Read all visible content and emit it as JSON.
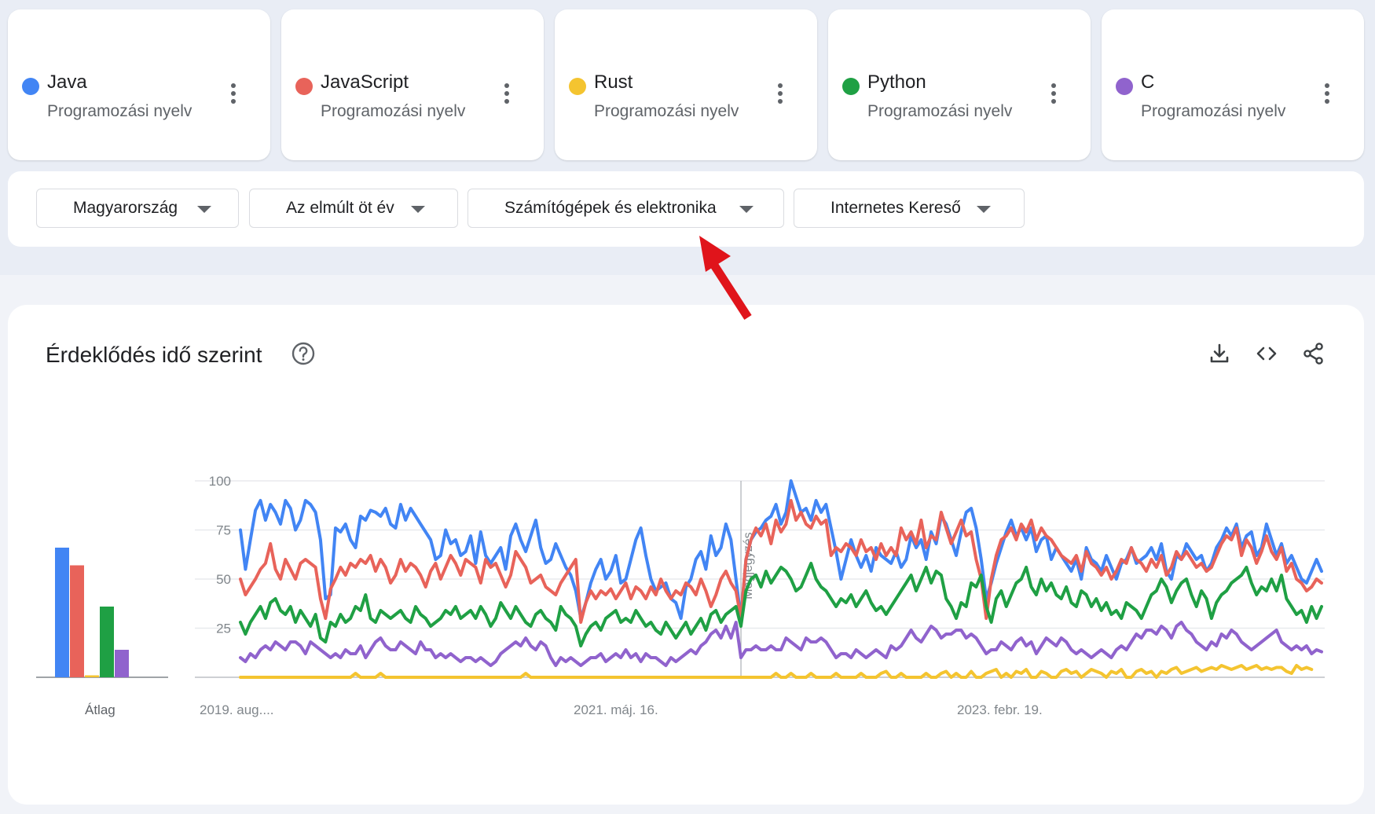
{
  "terms": [
    {
      "name": "Java",
      "type": "Programozási nyelv",
      "color": "#4285f4"
    },
    {
      "name": "JavaScript",
      "type": "Programozási nyelv",
      "color": "#e8635a"
    },
    {
      "name": "Rust",
      "type": "Programozási nyelv",
      "color": "#f4c430"
    },
    {
      "name": "Python",
      "type": "Programozási nyelv",
      "color": "#1fa044"
    },
    {
      "name": "C",
      "type": "Programozási nyelv",
      "color": "#9063cd"
    }
  ],
  "filters": {
    "region": "Magyarország",
    "time": "Az elmúlt öt év",
    "category": "Számítógépek és elektronika",
    "property": "Internetes Kereső"
  },
  "chart_card": {
    "title": "Érdeklődés idő szerint",
    "help_icon": "help-circle-icon",
    "download_icon": "download-icon",
    "embed_icon": "code-icon",
    "share_icon": "share-icon",
    "avg_label": "Átlag",
    "note_label": "Megjegyzés"
  },
  "chart_data": {
    "type": "line",
    "y_ticks": [
      "100",
      "75",
      "50",
      "25"
    ],
    "ylim": [
      0,
      100
    ],
    "x_tick_labels": [
      "2019. aug....",
      "2021. máj. 16.",
      "2023. febr. 19."
    ],
    "averages": [
      {
        "name": "Java",
        "value": 66,
        "color": "#4285f4"
      },
      {
        "name": "JavaScript",
        "value": 57,
        "color": "#e8635a"
      },
      {
        "name": "Rust",
        "value": 1,
        "color": "#f4c430"
      },
      {
        "name": "Python",
        "value": 36,
        "color": "#1fa044"
      },
      {
        "name": "C",
        "value": 14,
        "color": "#9063cd"
      }
    ],
    "series": [
      {
        "name": "Java",
        "color": "#4285f4",
        "values": [
          75,
          55,
          70,
          85,
          90,
          80,
          88,
          84,
          78,
          90,
          86,
          75,
          80,
          90,
          88,
          84,
          70,
          40,
          42,
          76,
          74,
          78,
          70,
          66,
          82,
          80,
          85,
          84,
          82,
          86,
          78,
          76,
          88,
          80,
          86,
          82,
          78,
          74,
          70,
          60,
          62,
          75,
          68,
          70,
          62,
          64,
          72,
          58,
          74,
          62,
          58,
          62,
          66,
          55,
          72,
          78,
          70,
          64,
          72,
          80,
          66,
          58,
          60,
          68,
          62,
          56,
          52,
          44,
          30,
          38,
          48,
          55,
          60,
          50,
          54,
          62,
          48,
          50,
          60,
          70,
          76,
          62,
          50,
          44,
          46,
          48,
          40,
          38,
          30,
          46,
          50,
          60,
          64,
          55,
          72,
          62,
          66,
          78,
          70,
          50,
          30,
          60,
          70,
          74,
          76,
          80,
          82,
          88,
          78,
          84,
          100,
          92,
          84,
          86,
          80,
          90,
          84,
          88,
          76,
          64,
          50,
          60,
          70,
          62,
          56,
          62,
          54,
          66,
          62,
          60,
          58,
          64,
          56,
          60,
          72,
          66,
          70,
          60,
          74,
          68,
          82,
          78,
          70,
          62,
          74,
          84,
          86,
          76,
          60,
          40,
          48,
          58,
          66,
          74,
          80,
          72,
          76,
          70,
          76,
          64,
          70,
          72,
          60,
          66,
          62,
          58,
          54,
          60,
          50,
          66,
          60,
          58,
          54,
          62,
          56,
          50,
          58,
          60,
          66,
          58,
          60,
          62,
          66,
          60,
          68,
          54,
          50,
          62,
          60,
          68,
          64,
          60,
          62,
          54,
          58,
          66,
          70,
          76,
          72,
          78,
          66,
          72,
          74,
          62,
          66,
          78,
          70,
          62,
          68,
          58,
          62,
          56,
          50,
          48,
          54,
          60,
          54
        ]
      },
      {
        "name": "JavaScript",
        "color": "#e8635a",
        "values": [
          50,
          42,
          46,
          50,
          55,
          58,
          68,
          55,
          50,
          60,
          55,
          50,
          58,
          60,
          58,
          56,
          40,
          30,
          45,
          50,
          56,
          52,
          58,
          56,
          60,
          58,
          62,
          54,
          60,
          56,
          48,
          52,
          60,
          54,
          58,
          56,
          52,
          46,
          54,
          58,
          50,
          56,
          62,
          58,
          52,
          60,
          58,
          56,
          48,
          60,
          56,
          58,
          52,
          46,
          52,
          64,
          60,
          56,
          48,
          50,
          52,
          46,
          44,
          42,
          48,
          52,
          56,
          60,
          28,
          38,
          44,
          40,
          44,
          42,
          45,
          40,
          44,
          48,
          40,
          46,
          44,
          40,
          46,
          42,
          50,
          44,
          40,
          44,
          42,
          48,
          46,
          42,
          50,
          44,
          36,
          42,
          50,
          54,
          48,
          44,
          30,
          60,
          70,
          76,
          72,
          78,
          68,
          80,
          74,
          78,
          90,
          80,
          84,
          78,
          76,
          82,
          78,
          80,
          62,
          66,
          64,
          68,
          66,
          62,
          70,
          64,
          66,
          60,
          68,
          62,
          66,
          62,
          76,
          70,
          74,
          68,
          80,
          66,
          72,
          70,
          84,
          76,
          68,
          74,
          80,
          72,
          74,
          60,
          50,
          30,
          50,
          62,
          70,
          72,
          76,
          70,
          78,
          74,
          80,
          70,
          76,
          72,
          70,
          66,
          62,
          60,
          58,
          62,
          54,
          64,
          58,
          56,
          52,
          56,
          50,
          54,
          60,
          58,
          66,
          60,
          58,
          54,
          60,
          56,
          62,
          52,
          56,
          64,
          60,
          64,
          60,
          56,
          58,
          54,
          56,
          62,
          68,
          72,
          70,
          76,
          62,
          70,
          66,
          58,
          64,
          72,
          64,
          60,
          66,
          54,
          58,
          50,
          48,
          44,
          46,
          50,
          48
        ]
      },
      {
        "name": "Rust",
        "color": "#f4c430",
        "values": [
          0,
          0,
          0,
          0,
          0,
          0,
          0,
          0,
          0,
          0,
          0,
          0,
          0,
          0,
          0,
          0,
          0,
          0,
          0,
          0,
          0,
          0,
          0,
          2,
          0,
          0,
          0,
          0,
          2,
          0,
          0,
          0,
          0,
          0,
          0,
          0,
          0,
          0,
          0,
          0,
          0,
          0,
          0,
          0,
          0,
          0,
          0,
          0,
          0,
          0,
          0,
          0,
          0,
          0,
          0,
          0,
          0,
          2,
          0,
          0,
          0,
          0,
          0,
          0,
          0,
          0,
          0,
          0,
          0,
          0,
          0,
          0,
          0,
          0,
          0,
          0,
          0,
          0,
          0,
          0,
          0,
          0,
          0,
          0,
          0,
          0,
          0,
          0,
          0,
          0,
          0,
          0,
          0,
          0,
          0,
          0,
          0,
          0,
          0,
          0,
          0,
          0,
          0,
          0,
          0,
          0,
          0,
          2,
          0,
          0,
          2,
          0,
          0,
          0,
          2,
          0,
          0,
          0,
          0,
          2,
          0,
          0,
          0,
          0,
          2,
          0,
          0,
          0,
          2,
          3,
          0,
          0,
          2,
          0,
          0,
          0,
          0,
          2,
          0,
          0,
          2,
          3,
          0,
          2,
          0,
          0,
          3,
          0,
          0,
          2,
          3,
          4,
          0,
          2,
          0,
          3,
          2,
          4,
          0,
          0,
          3,
          2,
          0,
          0,
          3,
          4,
          2,
          3,
          0,
          2,
          4,
          3,
          2,
          0,
          3,
          2,
          4,
          0,
          0,
          3,
          4,
          2,
          3,
          0,
          3,
          2,
          4,
          5,
          2,
          3,
          4,
          5,
          3,
          4,
          5,
          4,
          6,
          5,
          4,
          5,
          6,
          4,
          5,
          6,
          4,
          5,
          4,
          5,
          5,
          3,
          2,
          6,
          4,
          5,
          4
        ]
      },
      {
        "name": "Python",
        "color": "#1fa044",
        "values": [
          28,
          22,
          28,
          32,
          36,
          30,
          38,
          40,
          34,
          32,
          36,
          28,
          34,
          30,
          26,
          32,
          20,
          18,
          28,
          26,
          32,
          28,
          30,
          36,
          34,
          42,
          30,
          28,
          34,
          32,
          30,
          32,
          34,
          30,
          28,
          36,
          32,
          30,
          26,
          28,
          30,
          34,
          32,
          36,
          30,
          32,
          34,
          30,
          36,
          32,
          26,
          30,
          38,
          34,
          30,
          36,
          32,
          28,
          26,
          32,
          34,
          30,
          28,
          24,
          36,
          32,
          30,
          26,
          16,
          22,
          26,
          28,
          24,
          30,
          32,
          34,
          28,
          30,
          28,
          34,
          30,
          26,
          28,
          24,
          22,
          28,
          24,
          20,
          24,
          28,
          22,
          26,
          30,
          24,
          32,
          34,
          28,
          32,
          34,
          36,
          26,
          44,
          50,
          52,
          46,
          54,
          48,
          52,
          56,
          54,
          50,
          44,
          46,
          52,
          58,
          50,
          46,
          44,
          40,
          36,
          40,
          38,
          42,
          36,
          40,
          44,
          38,
          34,
          36,
          32,
          36,
          40,
          44,
          48,
          52,
          44,
          50,
          56,
          48,
          54,
          52,
          40,
          36,
          30,
          38,
          36,
          48,
          46,
          52,
          36,
          28,
          40,
          44,
          36,
          42,
          48,
          50,
          56,
          46,
          42,
          50,
          44,
          48,
          42,
          40,
          46,
          38,
          36,
          44,
          42,
          36,
          40,
          34,
          38,
          32,
          34,
          30,
          38,
          36,
          34,
          30,
          36,
          42,
          44,
          50,
          46,
          38,
          44,
          48,
          50,
          42,
          36,
          44,
          40,
          30,
          38,
          42,
          44,
          48,
          50,
          52,
          56,
          48,
          42,
          46,
          44,
          50,
          44,
          52,
          40,
          36,
          32,
          34,
          28,
          36,
          30,
          36
        ]
      },
      {
        "name": "C",
        "color": "#9063cd",
        "values": [
          10,
          8,
          12,
          10,
          14,
          16,
          14,
          18,
          16,
          14,
          18,
          18,
          16,
          12,
          18,
          16,
          14,
          12,
          10,
          12,
          10,
          14,
          12,
          12,
          16,
          10,
          14,
          18,
          20,
          16,
          14,
          14,
          18,
          16,
          14,
          12,
          18,
          14,
          14,
          10,
          12,
          10,
          12,
          10,
          8,
          10,
          10,
          8,
          10,
          8,
          6,
          8,
          12,
          14,
          16,
          18,
          16,
          20,
          16,
          14,
          18,
          16,
          10,
          6,
          10,
          8,
          10,
          8,
          6,
          8,
          10,
          10,
          12,
          8,
          10,
          12,
          10,
          14,
          10,
          12,
          8,
          12,
          10,
          10,
          8,
          6,
          10,
          8,
          10,
          12,
          14,
          12,
          16,
          18,
          22,
          24,
          20,
          26,
          20,
          28,
          10,
          14,
          14,
          16,
          14,
          14,
          16,
          14,
          14,
          20,
          18,
          16,
          14,
          20,
          18,
          18,
          20,
          18,
          14,
          10,
          12,
          12,
          10,
          14,
          12,
          10,
          12,
          14,
          12,
          10,
          16,
          14,
          16,
          20,
          24,
          20,
          18,
          22,
          26,
          24,
          20,
          22,
          22,
          24,
          24,
          20,
          22,
          20,
          16,
          12,
          14,
          14,
          18,
          16,
          14,
          18,
          20,
          16,
          18,
          12,
          16,
          20,
          18,
          16,
          20,
          18,
          14,
          12,
          14,
          12,
          10,
          12,
          14,
          12,
          10,
          14,
          16,
          14,
          18,
          22,
          20,
          24,
          24,
          22,
          26,
          24,
          20,
          26,
          28,
          24,
          22,
          18,
          16,
          14,
          18,
          16,
          22,
          20,
          24,
          22,
          18,
          16,
          14,
          16,
          18,
          20,
          22,
          24,
          18,
          16,
          14,
          16,
          14,
          16,
          12,
          14,
          13
        ]
      }
    ]
  }
}
